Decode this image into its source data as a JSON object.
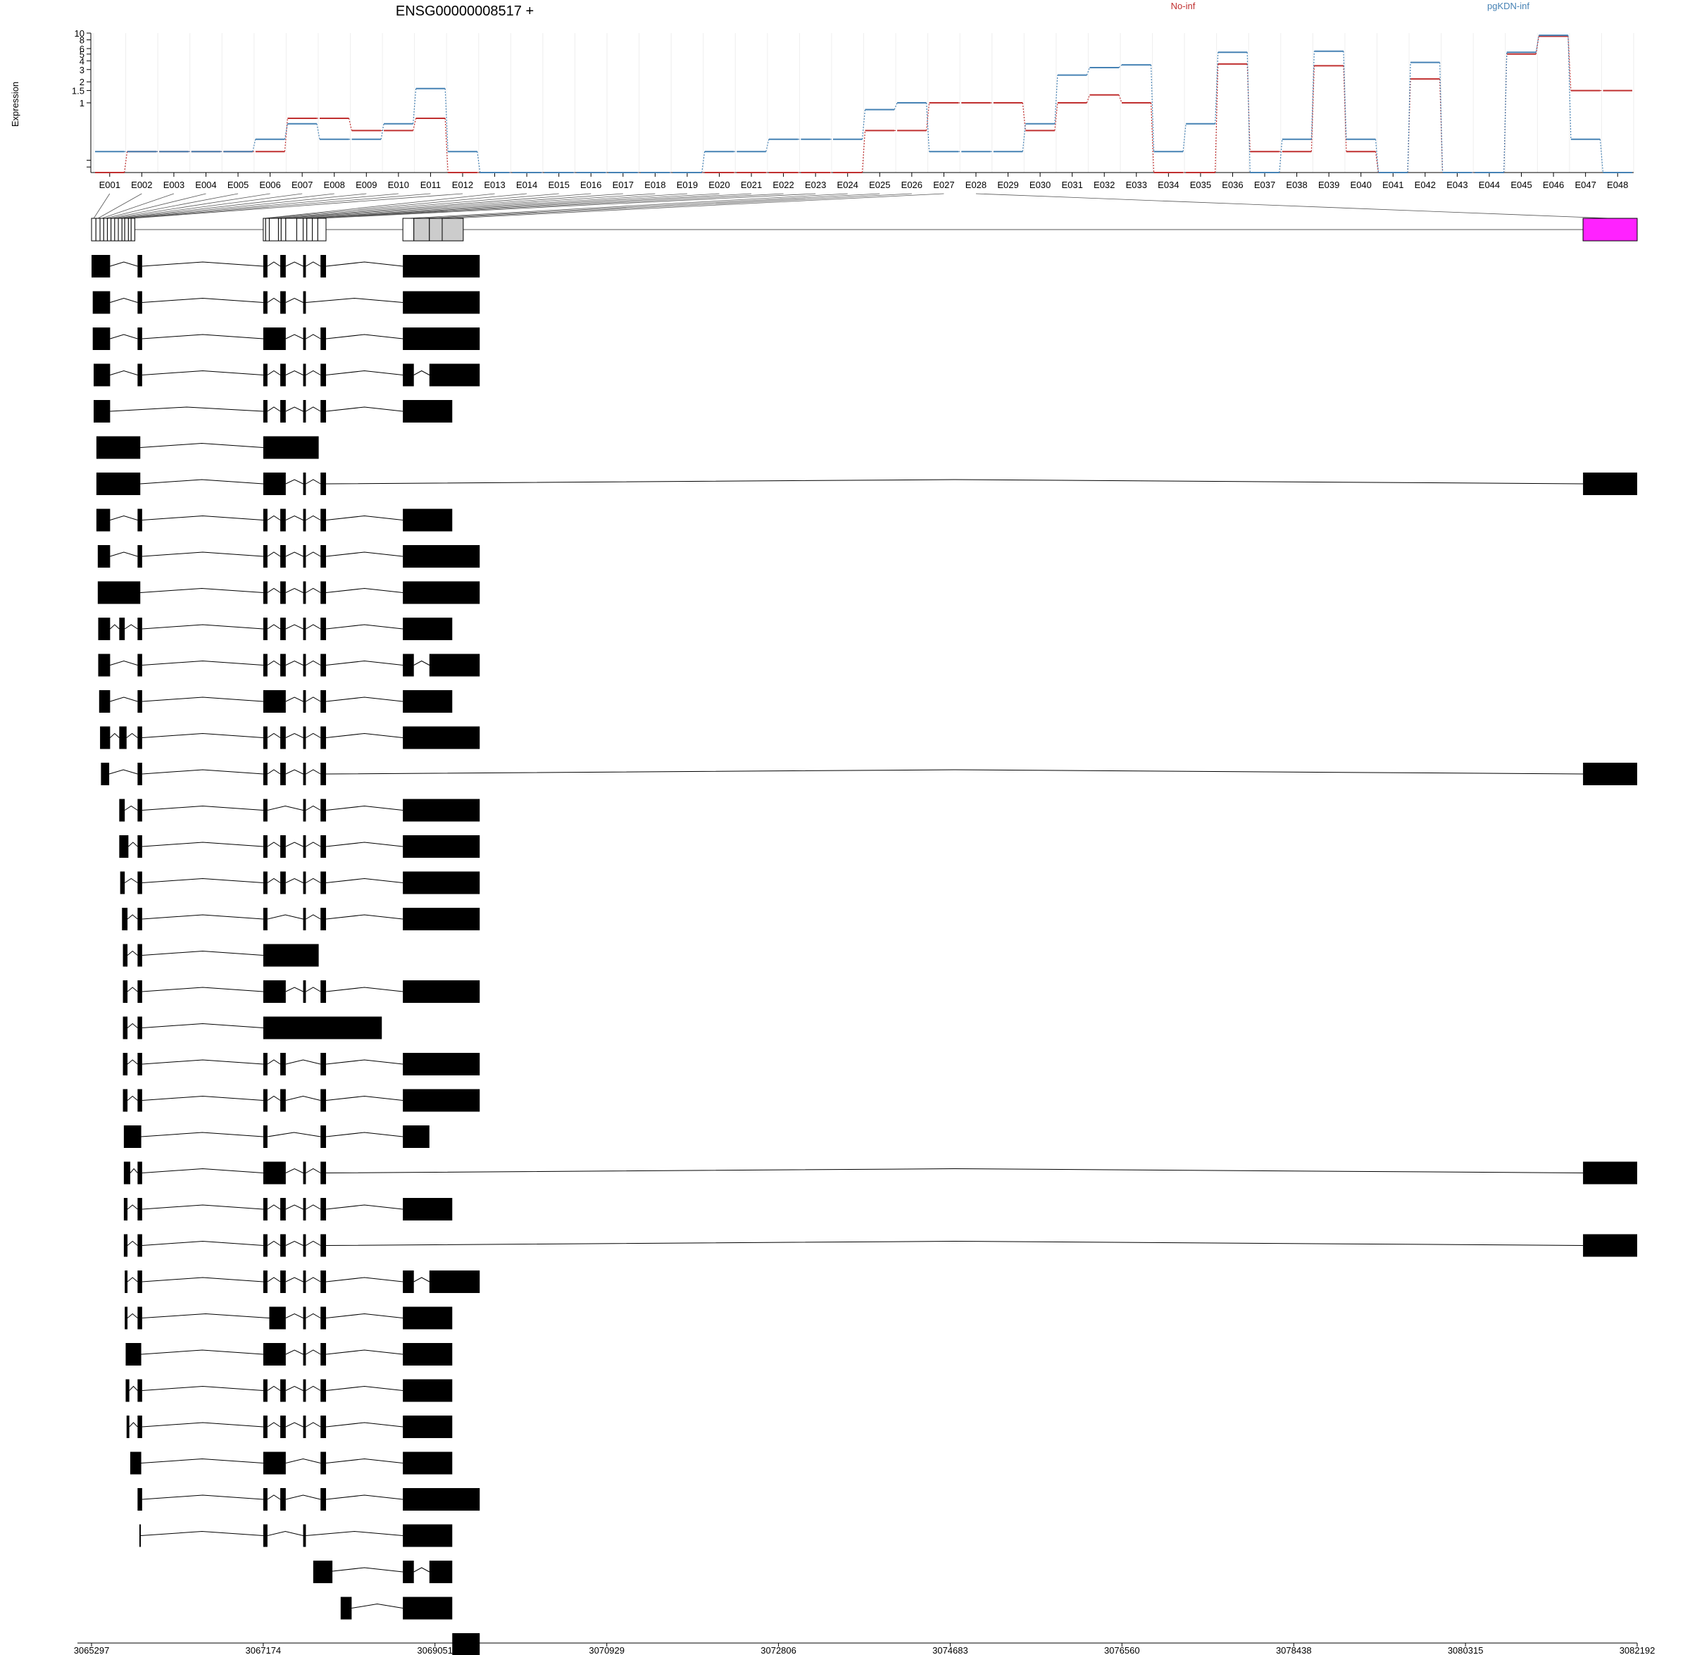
{
  "chart_data": {
    "type": "line",
    "title": "ENSG00000008517 +",
    "ylabel": "Expression",
    "y_scale": "log",
    "ylim": [
      0.1,
      10
    ],
    "y_ticks": [
      {
        "label": "10",
        "value": 10
      },
      {
        "label": "8",
        "value": 8
      },
      {
        "label": "6",
        "value": 6
      },
      {
        "label": "5",
        "value": 5
      },
      {
        "label": "4",
        "value": 4
      },
      {
        "label": "3",
        "value": 3
      },
      {
        "label": "2",
        "value": 2
      },
      {
        "label": "1.5",
        "value": 1.5
      },
      {
        "label": "1",
        "value": 1
      }
    ],
    "categories": [
      "E001",
      "E002",
      "E003",
      "E004",
      "E005",
      "E006",
      "E007",
      "E008",
      "E009",
      "E010",
      "E011",
      "E012",
      "E013",
      "E014",
      "E015",
      "E016",
      "E017",
      "E018",
      "E019",
      "E020",
      "E021",
      "E022",
      "E023",
      "E024",
      "E025",
      "E026",
      "E027",
      "E028",
      "E029",
      "E030",
      "E031",
      "E032",
      "E033",
      "E034",
      "E035",
      "E036",
      "E037",
      "E038",
      "E039",
      "E040",
      "E041",
      "E042",
      "E043",
      "E044",
      "E045",
      "E046",
      "E047",
      "E048"
    ],
    "series": [
      {
        "name": "No-inf",
        "color": "#c03030",
        "values": [
          0.1,
          0.2,
          0.2,
          0.2,
          0.2,
          0.2,
          0.6,
          0.6,
          0.4,
          0.4,
          0.6,
          0.1,
          0.1,
          0.1,
          0.1,
          0.1,
          0.1,
          0.1,
          0.1,
          0.1,
          0.1,
          0.1,
          0.1,
          0.1,
          0.4,
          0.4,
          1,
          1,
          1,
          0.4,
          1,
          1.3,
          1,
          0.1,
          0.1,
          3.6,
          0.2,
          0.2,
          3.4,
          0.2,
          0.1,
          2.2,
          0.1,
          0.1,
          5,
          9,
          1.5,
          1.5
        ]
      },
      {
        "name": "pgKDN-inf",
        "color": "#4682b4",
        "values": [
          0.2,
          0.2,
          0.2,
          0.2,
          0.2,
          0.3,
          0.5,
          0.3,
          0.3,
          0.5,
          1.6,
          0.2,
          0.1,
          0.1,
          0.1,
          0.1,
          0.1,
          0.1,
          0.1,
          0.2,
          0.2,
          0.3,
          0.3,
          0.3,
          0.8,
          1,
          0.2,
          0.2,
          0.2,
          0.5,
          2.5,
          3.2,
          3.5,
          0.2,
          0.5,
          5.3,
          0.1,
          0.3,
          5.5,
          0.3,
          0.1,
          3.8,
          0.1,
          0.1,
          5.3,
          9.3,
          0.3,
          0.1
        ]
      }
    ],
    "legend": [
      "No-inf",
      "pgKDN-inf"
    ],
    "legend_placement": "top-right",
    "grid": true
  },
  "gene_model": {
    "genomic_ticks": [
      "3065297",
      "3067174",
      "3069051",
      "3070929",
      "3072806",
      "3074683",
      "3076560",
      "3078438",
      "3080315",
      "3082192"
    ],
    "genomic_range": [
      3065297,
      3082192
    ],
    "highlight_color": "#ff22ff",
    "exons": [
      [
        3065297,
        3065345
      ],
      [
        3065345,
        3065390
      ],
      [
        3065390,
        3065430
      ],
      [
        3065430,
        3065470
      ],
      [
        3065470,
        3065510
      ],
      [
        3065510,
        3065550
      ],
      [
        3065550,
        3065590
      ],
      [
        3065590,
        3065630
      ],
      [
        3065630,
        3065660
      ],
      [
        3065660,
        3065700
      ],
      [
        3065700,
        3065730
      ],
      [
        3065730,
        3065770
      ],
      [
        3067174,
        3067200
      ],
      [
        3067200,
        3067240
      ],
      [
        3067240,
        3067340
      ],
      [
        3067340,
        3067370
      ],
      [
        3067370,
        3067420
      ],
      [
        3067420,
        3067540
      ],
      [
        3067540,
        3067610
      ],
      [
        3067610,
        3067650
      ],
      [
        3067650,
        3067710
      ],
      [
        3067710,
        3067770
      ],
      [
        3067770,
        3067860
      ],
      [
        3068700,
        3068820
      ],
      [
        3068820,
        3068990
      ],
      [
        3068990,
        3069130
      ],
      [
        3069130,
        3069360
      ],
      [
        3081600,
        3082192
      ]
    ],
    "transcripts": [
      [
        [
          3065297,
          3065500
        ],
        [
          3065800,
          3065850
        ],
        [
          3067174,
          3067220
        ],
        [
          3067360,
          3067420
        ],
        [
          3067610,
          3067640
        ],
        [
          3067800,
          3067860
        ],
        [
          3068700,
          3069540
        ]
      ],
      [
        [
          3065310,
          3065500
        ],
        [
          3065800,
          3065850
        ],
        [
          3067174,
          3067220
        ],
        [
          3067360,
          3067420
        ],
        [
          3067610,
          3067640
        ],
        [
          3068700,
          3069540
        ]
      ],
      [
        [
          3065310,
          3065500
        ],
        [
          3065800,
          3065850
        ],
        [
          3067174,
          3067420
        ],
        [
          3067610,
          3067640
        ],
        [
          3067800,
          3067860
        ],
        [
          3068700,
          3069540
        ]
      ],
      [
        [
          3065320,
          3065500
        ],
        [
          3065800,
          3065850
        ],
        [
          3067174,
          3067220
        ],
        [
          3067360,
          3067420
        ],
        [
          3067610,
          3067640
        ],
        [
          3067800,
          3067860
        ],
        [
          3068700,
          3068820
        ],
        [
          3068990,
          3069540
        ]
      ],
      [
        [
          3065320,
          3065500
        ],
        [
          3067174,
          3067220
        ],
        [
          3067360,
          3067420
        ],
        [
          3067610,
          3067640
        ],
        [
          3067800,
          3067860
        ],
        [
          3068700,
          3069240
        ]
      ],
      [
        [
          3065350,
          3065830
        ],
        [
          3067174,
          3067780
        ]
      ],
      [
        [
          3065350,
          3065830
        ],
        [
          3067174,
          3067420
        ],
        [
          3067610,
          3067640
        ],
        [
          3067800,
          3067860
        ],
        [
          3081600,
          3082192
        ]
      ],
      [
        [
          3065350,
          3065500
        ],
        [
          3065800,
          3065850
        ],
        [
          3067174,
          3067220
        ],
        [
          3067360,
          3067420
        ],
        [
          3067610,
          3067640
        ],
        [
          3067800,
          3067860
        ],
        [
          3068700,
          3069240
        ]
      ],
      [
        [
          3065365,
          3065500
        ],
        [
          3065800,
          3065850
        ],
        [
          3067174,
          3067220
        ],
        [
          3067360,
          3067420
        ],
        [
          3067610,
          3067640
        ],
        [
          3067800,
          3067860
        ],
        [
          3068700,
          3069540
        ]
      ],
      [
        [
          3065365,
          3065830
        ],
        [
          3067174,
          3067220
        ],
        [
          3067360,
          3067420
        ],
        [
          3067610,
          3067640
        ],
        [
          3067800,
          3067860
        ],
        [
          3068700,
          3069540
        ]
      ],
      [
        [
          3065370,
          3065500
        ],
        [
          3065600,
          3065660
        ],
        [
          3065800,
          3065850
        ],
        [
          3067174,
          3067220
        ],
        [
          3067360,
          3067420
        ],
        [
          3067610,
          3067640
        ],
        [
          3067800,
          3067860
        ],
        [
          3068700,
          3069240
        ]
      ],
      [
        [
          3065370,
          3065500
        ],
        [
          3065800,
          3065850
        ],
        [
          3067174,
          3067220
        ],
        [
          3067360,
          3067420
        ],
        [
          3067610,
          3067640
        ],
        [
          3067800,
          3067860
        ],
        [
          3068700,
          3068820
        ],
        [
          3068990,
          3069540
        ]
      ],
      [
        [
          3065380,
          3065500
        ],
        [
          3065800,
          3065850
        ],
        [
          3067174,
          3067420
        ],
        [
          3067610,
          3067640
        ],
        [
          3067800,
          3067860
        ],
        [
          3068700,
          3069240
        ]
      ],
      [
        [
          3065390,
          3065500
        ],
        [
          3065600,
          3065680
        ],
        [
          3065800,
          3065850
        ],
        [
          3067174,
          3067220
        ],
        [
          3067360,
          3067420
        ],
        [
          3067610,
          3067640
        ],
        [
          3067800,
          3067860
        ],
        [
          3068700,
          3069540
        ]
      ],
      [
        [
          3065400,
          3065490
        ],
        [
          3065800,
          3065850
        ],
        [
          3067174,
          3067220
        ],
        [
          3067360,
          3067420
        ],
        [
          3067610,
          3067640
        ],
        [
          3067800,
          3067860
        ],
        [
          3081600,
          3082192
        ]
      ],
      [
        [
          3065600,
          3065660
        ],
        [
          3065800,
          3065850
        ],
        [
          3067174,
          3067220
        ],
        [
          3067610,
          3067640
        ],
        [
          3067800,
          3067860
        ],
        [
          3068700,
          3069540
        ]
      ],
      [
        [
          3065600,
          3065700
        ],
        [
          3065800,
          3065850
        ],
        [
          3067174,
          3067220
        ],
        [
          3067360,
          3067420
        ],
        [
          3067610,
          3067640
        ],
        [
          3067800,
          3067860
        ],
        [
          3068700,
          3069540
        ]
      ],
      [
        [
          3065610,
          3065660
        ],
        [
          3065800,
          3065850
        ],
        [
          3067174,
          3067220
        ],
        [
          3067360,
          3067420
        ],
        [
          3067610,
          3067640
        ],
        [
          3067800,
          3067860
        ],
        [
          3068700,
          3069540
        ]
      ],
      [
        [
          3065630,
          3065690
        ],
        [
          3065800,
          3065850
        ],
        [
          3067174,
          3067220
        ],
        [
          3067610,
          3067640
        ],
        [
          3067800,
          3067860
        ],
        [
          3068700,
          3069540
        ]
      ],
      [
        [
          3065640,
          3065690
        ],
        [
          3065800,
          3065850
        ],
        [
          3067174,
          3067780
        ]
      ],
      [
        [
          3065640,
          3065690
        ],
        [
          3065800,
          3065850
        ],
        [
          3067174,
          3067420
        ],
        [
          3067610,
          3067640
        ],
        [
          3067800,
          3067860
        ],
        [
          3068700,
          3069540
        ]
      ],
      [
        [
          3065640,
          3065690
        ],
        [
          3065800,
          3065850
        ],
        [
          3067174,
          3068470
        ]
      ],
      [
        [
          3065640,
          3065690
        ],
        [
          3065800,
          3065850
        ],
        [
          3067174,
          3067220
        ],
        [
          3067360,
          3067420
        ],
        [
          3067800,
          3067860
        ],
        [
          3068700,
          3069540
        ]
      ],
      [
        [
          3065640,
          3065690
        ],
        [
          3065800,
          3065850
        ],
        [
          3067174,
          3067220
        ],
        [
          3067360,
          3067420
        ],
        [
          3067800,
          3067860
        ],
        [
          3068700,
          3069540
        ]
      ],
      [
        [
          3065650,
          3065840
        ],
        [
          3067174,
          3067220
        ],
        [
          3067800,
          3067860
        ],
        [
          3068700,
          3068990
        ]
      ],
      [
        [
          3065650,
          3065720
        ],
        [
          3065800,
          3065850
        ],
        [
          3067174,
          3067420
        ],
        [
          3067610,
          3067640
        ],
        [
          3067800,
          3067860
        ],
        [
          3081600,
          3082192
        ]
      ],
      [
        [
          3065650,
          3065690
        ],
        [
          3065800,
          3065850
        ],
        [
          3067174,
          3067220
        ],
        [
          3067360,
          3067420
        ],
        [
          3067610,
          3067640
        ],
        [
          3067800,
          3067860
        ],
        [
          3068700,
          3069240
        ]
      ],
      [
        [
          3065650,
          3065690
        ],
        [
          3065800,
          3065850
        ],
        [
          3067174,
          3067220
        ],
        [
          3067360,
          3067420
        ],
        [
          3067610,
          3067640
        ],
        [
          3067800,
          3067860
        ],
        [
          3081600,
          3082192
        ]
      ],
      [
        [
          3065660,
          3065690
        ],
        [
          3065800,
          3065850
        ],
        [
          3067174,
          3067220
        ],
        [
          3067360,
          3067420
        ],
        [
          3067610,
          3067640
        ],
        [
          3067800,
          3067860
        ],
        [
          3068700,
          3068820
        ],
        [
          3068990,
          3069540
        ]
      ],
      [
        [
          3065660,
          3065690
        ],
        [
          3065800,
          3065850
        ],
        [
          3067240,
          3067420
        ],
        [
          3067610,
          3067640
        ],
        [
          3067800,
          3067860
        ],
        [
          3068700,
          3069240
        ]
      ],
      [
        [
          3065670,
          3065840
        ],
        [
          3067174,
          3067420
        ],
        [
          3067610,
          3067640
        ],
        [
          3067800,
          3067860
        ],
        [
          3068700,
          3069240
        ]
      ],
      [
        [
          3065670,
          3065710
        ],
        [
          3065800,
          3065850
        ],
        [
          3067174,
          3067220
        ],
        [
          3067360,
          3067420
        ],
        [
          3067610,
          3067640
        ],
        [
          3067800,
          3067860
        ],
        [
          3068700,
          3069240
        ]
      ],
      [
        [
          3065680,
          3065710
        ],
        [
          3065800,
          3065850
        ],
        [
          3067174,
          3067220
        ],
        [
          3067360,
          3067420
        ],
        [
          3067610,
          3067640
        ],
        [
          3067800,
          3067860
        ],
        [
          3068700,
          3069240
        ]
      ],
      [
        [
          3065720,
          3065840
        ],
        [
          3067174,
          3067420
        ],
        [
          3067800,
          3067860
        ],
        [
          3068700,
          3069240
        ]
      ],
      [
        [
          3065800,
          3065850
        ],
        [
          3067174,
          3067220
        ],
        [
          3067360,
          3067420
        ],
        [
          3067800,
          3067860
        ],
        [
          3068700,
          3069540
        ]
      ],
      [
        [
          3065820,
          3065835
        ],
        [
          3067174,
          3067220
        ],
        [
          3067610,
          3067640
        ],
        [
          3068700,
          3069240
        ]
      ],
      [
        [
          3067720,
          3067930
        ],
        [
          3067800,
          3067860
        ],
        [
          3068700,
          3068820
        ],
        [
          3068990,
          3069240
        ]
      ],
      [
        [
          3068020,
          3068140
        ],
        [
          3068700,
          3069240
        ]
      ],
      [
        [
          3069240,
          3069540
        ]
      ]
    ]
  }
}
